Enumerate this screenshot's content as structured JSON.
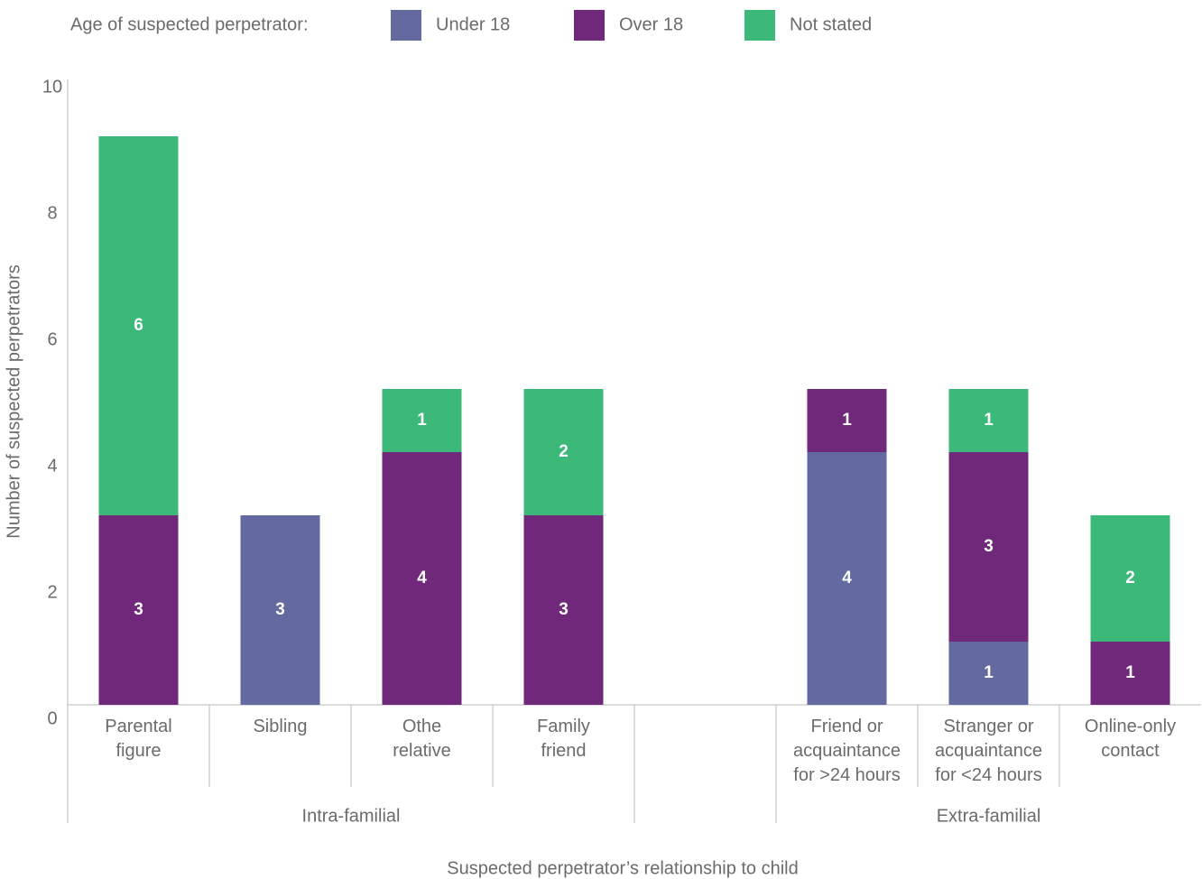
{
  "chart_data": {
    "type": "stacked_bar",
    "legend_title": "Age of suspected perpetrator:",
    "y_label": "Number of suspected perpetrators",
    "x_label": "Suspected perpetrator’s relationship to child",
    "categories": [
      "Parental\nfigure",
      "Sibling",
      "Othe\nrelative",
      "Family\nfriend",
      null,
      "Friend or\nacquaintance\nfor >24 hours",
      "Stranger or\nacquaintance\nfor <24 hours",
      "Online-only\ncontact"
    ],
    "groups": [
      {
        "name": "Intra-familial",
        "size": 4
      },
      {
        "name": "Extra-familial",
        "size": 3
      }
    ],
    "series": [
      {
        "name": "Under 18",
        "color": "#626aa0",
        "values": [
          null,
          3,
          null,
          null,
          null,
          4,
          1,
          null
        ]
      },
      {
        "name": "Over 18",
        "color": "#70287a",
        "values": [
          3,
          null,
          4,
          3,
          null,
          1,
          3,
          1
        ]
      },
      {
        "name": "Not stated",
        "color": "#3cb878",
        "values": [
          6,
          null,
          1,
          2,
          null,
          null,
          1,
          2
        ]
      }
    ],
    "ylim": [
      0,
      10
    ],
    "yticks": [
      0,
      2,
      4,
      6,
      8,
      10
    ]
  }
}
